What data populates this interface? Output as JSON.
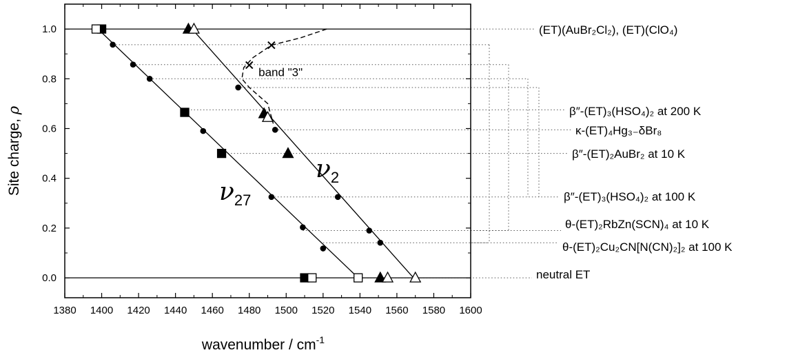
{
  "chart_data": {
    "type": "scatter",
    "xlabel": "wavenumber / cm",
    "xlabel_sup": "-1",
    "ylabel": "Site charge, ",
    "ylabel_symbol": "ρ",
    "xlim": [
      1380,
      1600
    ],
    "ylim": [
      -0.08,
      1.1
    ],
    "xticks": [
      1380,
      1400,
      1420,
      1440,
      1460,
      1480,
      1500,
      1520,
      1540,
      1560,
      1580,
      1600
    ],
    "xtick_labels": [
      "1380",
      "1400",
      "1420",
      "1440",
      "1460",
      "1480",
      "1500",
      "1520",
      "1540",
      "1560",
      "1580",
      "1600"
    ],
    "yticks": [
      0.0,
      0.2,
      0.4,
      0.6,
      0.8,
      1.0
    ],
    "ytick_labels": [
      "0.0",
      "0.2",
      "0.4",
      "0.6",
      "0.8",
      "1.0"
    ],
    "reference_lines": [
      0.0,
      1.0
    ],
    "fit_lines": [
      {
        "name": "ν27",
        "points": [
          [
            1398,
            1.0
          ],
          [
            1539,
            0.0
          ]
        ]
      },
      {
        "name": "ν2",
        "points": [
          [
            1449,
            1.0
          ],
          [
            1569,
            0.0
          ]
        ]
      }
    ],
    "series": [
      {
        "marker": "circle",
        "points": [
          [
            1406,
            0.937
          ],
          [
            1417,
            0.857
          ],
          [
            1426,
            0.8
          ],
          [
            1455,
            0.59
          ],
          [
            1492,
            0.325
          ],
          [
            1509,
            0.203
          ],
          [
            1520,
            0.118
          ],
          [
            1474,
            0.765
          ],
          [
            1494,
            0.595
          ],
          [
            1528,
            0.325
          ],
          [
            1545,
            0.19
          ],
          [
            1551,
            0.141
          ]
        ]
      },
      {
        "marker": "filled-square",
        "points": [
          [
            1400,
            1.0
          ],
          [
            1445,
            0.665
          ],
          [
            1465,
            0.5
          ],
          [
            1510,
            0.0
          ]
        ]
      },
      {
        "marker": "open-square",
        "points": [
          [
            1397,
            1.0
          ],
          [
            1514,
            0.0
          ],
          [
            1539,
            0.0
          ]
        ]
      },
      {
        "marker": "filled-triangle",
        "points": [
          [
            1447,
            1.0
          ],
          [
            1488,
            0.66
          ],
          [
            1501,
            0.5
          ],
          [
            1551,
            0.0
          ]
        ]
      },
      {
        "marker": "open-triangle",
        "points": [
          [
            1450,
            1.0
          ],
          [
            1490,
            0.645
          ],
          [
            1555,
            0.0
          ],
          [
            1570,
            0.0
          ]
        ]
      },
      {
        "marker": "cross",
        "points": [
          [
            1480,
            0.855
          ],
          [
            1492,
            0.935
          ]
        ]
      }
    ],
    "band3": {
      "label": "band \"3\"",
      "path": [
        [
          1522,
          1.0
        ],
        [
          1508,
          0.965
        ],
        [
          1492,
          0.935
        ],
        [
          1482,
          0.885
        ],
        [
          1477,
          0.845
        ],
        [
          1476,
          0.8
        ],
        [
          1480,
          0.765
        ],
        [
          1490,
          0.7
        ],
        [
          1493,
          0.62
        ]
      ]
    },
    "annotations": [
      {
        "y": 1.0,
        "x_lines": [],
        "label": "(ET)(AuBr₂Cl₂), (ET)(ClO₄)"
      },
      {
        "y": 0.675,
        "x_lines": [],
        "label": "β″-(ET)₃(HSO₄)₂ at 200 K"
      },
      {
        "y": 0.595,
        "x_lines": [],
        "label": "κ-(ET)₄Hg₃₋δBr₈"
      },
      {
        "y": 0.5,
        "x_lines": [],
        "label": "β″-(ET)₂AuBr₂ at 10 K"
      },
      {
        "y": 0.325,
        "x_lines": [],
        "label": "β″-(ET)₃(HSO₄)₂ at 100 K"
      },
      {
        "y": 0.19,
        "x_lines": [],
        "label": "θ-(ET)₂RbZn(SCN)₄ at 10 K"
      },
      {
        "y": 0.141,
        "x_lines": [],
        "label": "θ-(ET)₂Cu₂CN[N(CN)₂]₂ at 100 K"
      },
      {
        "y": 0.0,
        "x_lines": [],
        "label": "neutral ET"
      }
    ],
    "line_labels": [
      {
        "symbol": "ν",
        "subscript": "27"
      },
      {
        "symbol": "ν",
        "subscript": "2"
      }
    ]
  }
}
